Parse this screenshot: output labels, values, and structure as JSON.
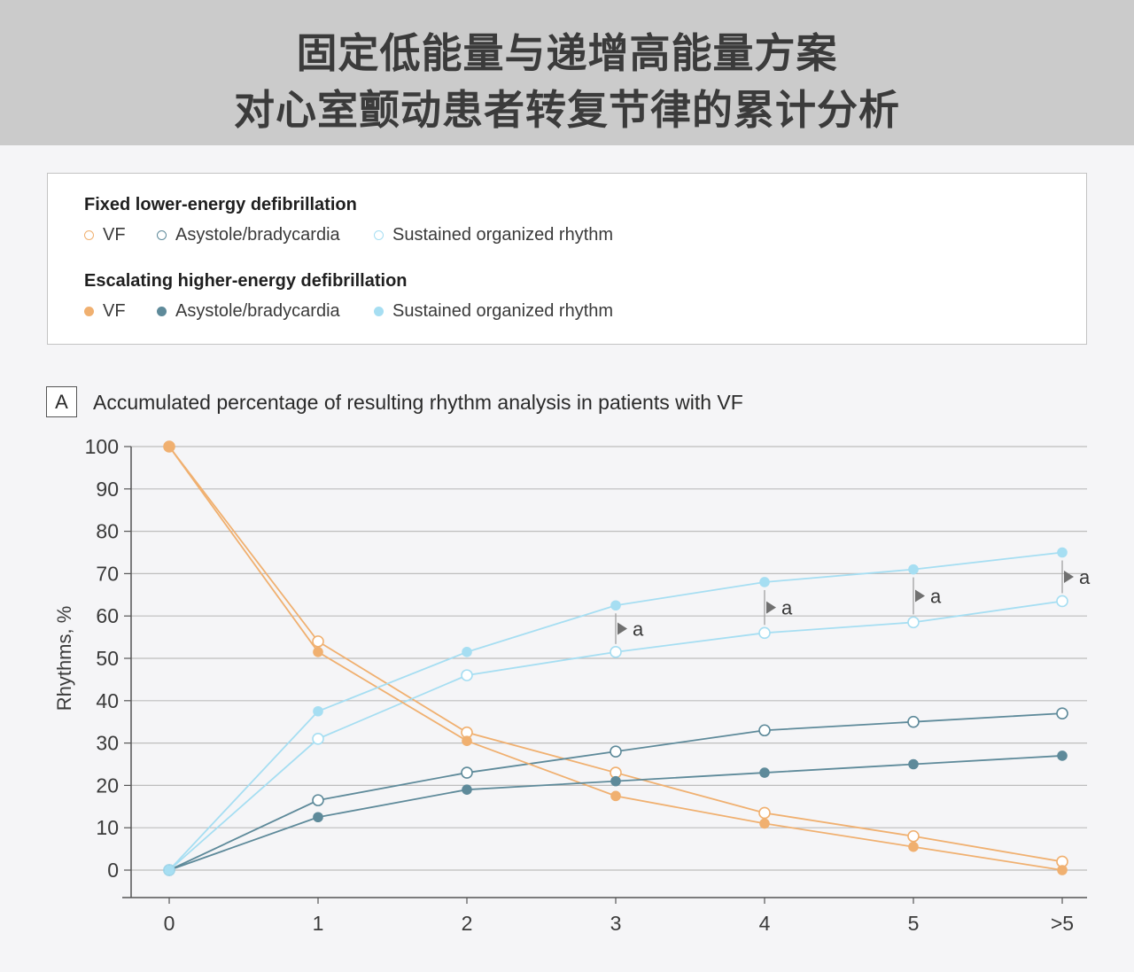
{
  "header": {
    "title_line1": "固定低能量与递增高能量方案",
    "title_line2": "对心室颤动患者转复节律的累计分析"
  },
  "legend": {
    "group1_title": "Fixed lower-energy defibrillation",
    "group2_title": "Escalating higher-energy defibrillation",
    "items": [
      "VF",
      "Asystole/bradycardia",
      "Sustained organized rhythm"
    ]
  },
  "colors": {
    "vf": "#f0b070",
    "asystole": "#5e8a9a",
    "organized": "#a6def2",
    "grid": "#bdbdbd"
  },
  "panel": {
    "letter": "A",
    "title": "Accumulated percentage of resulting rhythm analysis in patients with VF"
  },
  "chart_data": {
    "type": "line",
    "ylabel": "Rhythms, %",
    "xlabel": "",
    "categories": [
      "0",
      "1",
      "2",
      "3",
      "4",
      "5",
      ">5"
    ],
    "ylim": [
      0,
      100
    ],
    "yticks": [
      0,
      10,
      20,
      30,
      40,
      50,
      60,
      70,
      80,
      90,
      100
    ],
    "grid": true,
    "series": [
      {
        "name": "VF",
        "group": "Fixed lower-energy defibrillation",
        "marker": "open",
        "color": "#f0b070",
        "values": [
          100,
          54,
          32.5,
          23,
          13.5,
          8,
          2
        ]
      },
      {
        "name": "Asystole/bradycardia",
        "group": "Fixed lower-energy defibrillation",
        "marker": "open",
        "color": "#5e8a9a",
        "values": [
          0,
          16.5,
          23,
          28,
          33,
          35,
          37
        ]
      },
      {
        "name": "Sustained organized rhythm",
        "group": "Fixed lower-energy defibrillation",
        "marker": "open",
        "color": "#a6def2",
        "values": [
          0,
          31,
          46,
          51.5,
          56,
          58.5,
          63.5
        ]
      },
      {
        "name": "VF",
        "group": "Escalating higher-energy defibrillation",
        "marker": "filled",
        "color": "#f0b070",
        "values": [
          100,
          51.5,
          30.5,
          17.5,
          11,
          5.5,
          0
        ]
      },
      {
        "name": "Asystole/bradycardia",
        "group": "Escalating higher-energy defibrillation",
        "marker": "filled",
        "color": "#5e8a9a",
        "values": [
          0,
          12.5,
          19,
          21,
          23,
          25,
          27
        ]
      },
      {
        "name": "Sustained organized rhythm",
        "group": "Escalating higher-energy defibrillation",
        "marker": "filled",
        "color": "#a6def2",
        "values": [
          0,
          37.5,
          51.5,
          62.5,
          68,
          71,
          75
        ]
      }
    ],
    "annotations": [
      {
        "x": "3",
        "text": "a"
      },
      {
        "x": "4",
        "text": "a"
      },
      {
        "x": "5",
        "text": "a"
      },
      {
        "x": ">5",
        "text": "a"
      }
    ]
  }
}
